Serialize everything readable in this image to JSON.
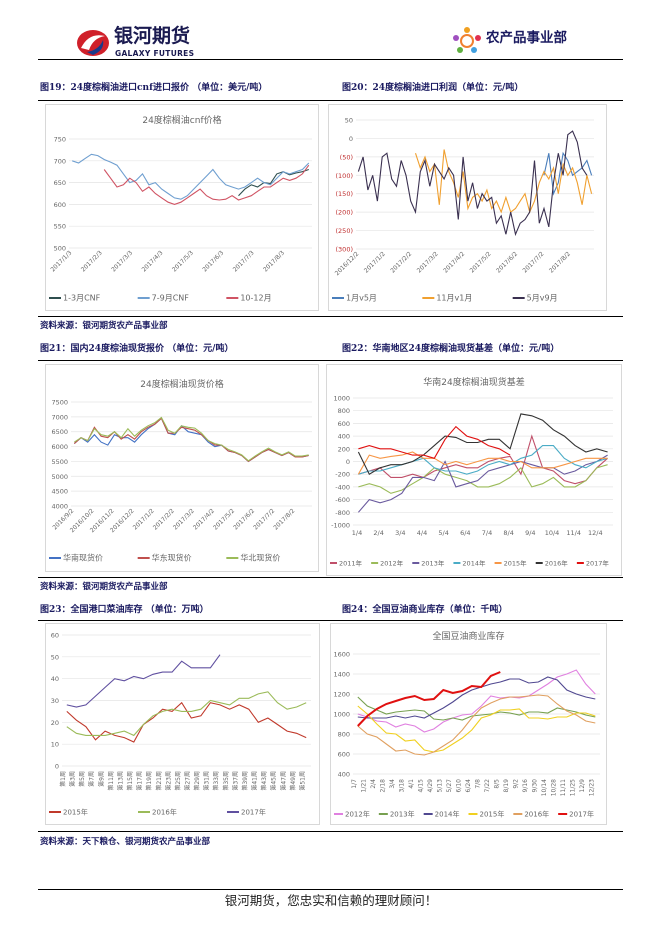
{
  "header": {
    "logo_cn": "银河期货",
    "logo_en": "GALAXY FUTURES",
    "dept": "农产品事业部"
  },
  "captions": {
    "fig19": "图19：24度棕榈油进口cnf进口报价 （单位：美元/吨）",
    "fig20": "图20：24度棕榈油进口利润（单位：元/吨）",
    "fig21": "图21：国内24度棕油现货报价 （单位：元/吨）",
    "fig22": "图22：华南地区24度棕榈油现货基差（单位：元/吨）",
    "fig23": "图23：全国港口菜油库存 （单位：万吨）",
    "fig24": "图24：全国豆油商业库存（单位：千吨）"
  },
  "sources": {
    "s1": "资料来源：银河期货农产品事业部",
    "s2": "资料来源：银河期货农产品事业部",
    "s3": "资料来源：天下粮仓、银河期货农产品事业部"
  },
  "footer": {
    "slogan": "银河期货，您忠实和信赖的理财顾问！"
  },
  "chart_data": [
    {
      "type": "line",
      "title": "24度棕榈油cnf价格",
      "ylim": [
        500,
        750
      ],
      "yticks": [
        500,
        550,
        600,
        650,
        700,
        750
      ],
      "ytick_labels": [
        "500",
        "550",
        "600",
        "650",
        "700",
        "750"
      ],
      "xlabels": [
        "2017/1/3",
        "2017/2/3",
        "2017/3/3",
        "2017/4/3",
        "2017/5/3",
        "2017/6/3",
        "2017/7/3",
        "2017/8/3"
      ],
      "x_count": 38,
      "series": [
        {
          "name": "1-3月CNF",
          "color": "#2f4f4f",
          "offset": 26,
          "values": [
            620,
            635,
            645,
            640,
            650,
            648,
            670,
            675,
            668,
            672,
            675,
            680
          ]
        },
        {
          "name": "7-9月CNF",
          "color": "#6f9fd0",
          "offset": 0,
          "values": [
            700,
            695,
            705,
            715,
            712,
            703,
            697,
            690,
            670,
            650,
            655,
            670,
            645,
            650,
            635,
            625,
            615,
            612,
            620,
            635,
            650,
            665,
            680,
            660,
            645,
            640,
            635,
            640,
            650,
            660,
            650,
            645,
            660,
            675,
            670,
            675,
            680,
            695
          ]
        },
        {
          "name": "10-12月",
          "color": "#d05464",
          "offset": 5,
          "values": [
            680,
            660,
            640,
            645,
            660,
            650,
            630,
            640,
            625,
            615,
            605,
            600,
            605,
            615,
            625,
            635,
            620,
            612,
            610,
            612,
            620,
            610,
            615,
            620,
            630,
            640,
            640,
            650,
            660,
            655,
            660,
            670,
            690
          ]
        }
      ]
    },
    {
      "type": "line",
      "title": "",
      "ylim": [
        -300,
        50
      ],
      "yticks": [
        -300,
        -250,
        -200,
        -150,
        -100,
        -50,
        0,
        50
      ],
      "ytick_labels": [
        "(300)",
        "(250)",
        "(200)",
        "(150)",
        "(100)",
        "(50)",
        "0",
        "50"
      ],
      "xlabels": [
        "2016/12/2",
        "2017/1/2",
        "2017/2/2",
        "2017/3/2",
        "2017/4/2",
        "2017/5/2",
        "2017/6/2",
        "2017/7/2",
        "2017/8/2"
      ],
      "x_count": 50,
      "series": [
        {
          "name": "1月v5月",
          "color": "#4a7ebb",
          "offset": 39,
          "values": [
            -100,
            -40,
            -150,
            -120,
            -40,
            -60,
            -100,
            -90,
            -80,
            -60,
            -100
          ]
        },
        {
          "name": "11月v1月",
          "color": "#f0a030",
          "offset": 12,
          "values": [
            -40,
            -80,
            -50,
            -90,
            -70,
            -180,
            -30,
            -90,
            -120,
            -160,
            -90,
            -190,
            -160,
            -150,
            -170,
            -140,
            -190,
            -170,
            -200,
            -160,
            -200,
            -190,
            -170,
            -150,
            -200,
            -170,
            -120,
            -90,
            -110,
            -80,
            -150,
            -70,
            -100,
            -80,
            -120,
            -180,
            -100,
            -150
          ]
        },
        {
          "name": "5月v9月",
          "color": "#3a3050",
          "offset": 0,
          "values": [
            -90,
            -50,
            -140,
            -100,
            -170,
            -50,
            -40,
            -110,
            -130,
            -60,
            -100,
            -170,
            -200,
            -90,
            -60,
            -130,
            -70,
            -90,
            -110,
            -80,
            -100,
            -220,
            -50,
            -170,
            -120,
            -190,
            -150,
            -170,
            -160,
            -230,
            -210,
            -260,
            -200,
            -260,
            -230,
            -220,
            -200,
            -60,
            -230,
            -190,
            -240,
            -120,
            -40,
            -100,
            10,
            20,
            -10,
            -80,
            -100
          ]
        }
      ]
    },
    {
      "type": "line",
      "title": "24度棕榈油现货价格",
      "ylim": [
        4000,
        7500
      ],
      "yticks": [
        4000,
        4500,
        5000,
        5500,
        6000,
        6500,
        7000,
        7500
      ],
      "ytick_labels": [
        "4000",
        "4500",
        "5000",
        "5500",
        "6000",
        "6500",
        "7000",
        "7500"
      ],
      "xlabels": [
        "2016/9/2",
        "2016/10/2",
        "2016/11/2",
        "2016/12/2",
        "2017/1/2",
        "2017/2/2",
        "2017/3/2",
        "2017/4/2",
        "2017/5/2",
        "2017/6/2",
        "2017/7/2",
        "2017/8/2"
      ],
      "x_count": 36,
      "series": [
        {
          "name": "华南现货价",
          "color": "#4472c4",
          "offset": 0,
          "values": [
            6100,
            6300,
            6150,
            6400,
            6150,
            6050,
            6400,
            6300,
            6300,
            6150,
            6400,
            6600,
            6750,
            6950,
            6450,
            6400,
            6700,
            6500,
            6450,
            6400,
            6150,
            6000,
            6050,
            5850,
            5800,
            5700,
            5500,
            5650,
            5800,
            5900,
            5800,
            5700,
            5800,
            5650,
            5650,
            5700
          ]
        },
        {
          "name": "华东现货价",
          "color": "#c0504d",
          "offset": 0,
          "values": [
            6100,
            6300,
            6200,
            6650,
            6350,
            6300,
            6500,
            6250,
            6400,
            6250,
            6500,
            6650,
            6750,
            6950,
            6450,
            6450,
            6650,
            6600,
            6550,
            6400,
            6200,
            6050,
            6050,
            5850,
            5800,
            5700,
            5500,
            5650,
            5800,
            5900,
            5800,
            5700,
            5800,
            5650,
            5650,
            5700
          ]
        },
        {
          "name": "华北现货价",
          "color": "#9bbb59",
          "offset": 0,
          "values": [
            6150,
            6300,
            6200,
            6600,
            6400,
            6350,
            6500,
            6300,
            6600,
            6350,
            6550,
            6700,
            6800,
            6980,
            6550,
            6450,
            6700,
            6650,
            6620,
            6450,
            6200,
            6100,
            6050,
            5900,
            5820,
            5720,
            5520,
            5680,
            5820,
            5950,
            5820,
            5720,
            5820,
            5680,
            5680,
            5720
          ]
        }
      ]
    },
    {
      "type": "line",
      "title": "华南24度棕榈油现货基差",
      "ylim": [
        -1000,
        1000
      ],
      "yticks": [
        -1000,
        -800,
        -600,
        -400,
        -200,
        0,
        200,
        400,
        600,
        800,
        1000
      ],
      "ytick_labels": [
        "-1000",
        "-800",
        "-600",
        "-400",
        "-200",
        "0",
        "200",
        "400",
        "600",
        "800",
        "1000"
      ],
      "xlabels": [
        "1/4",
        "2/4",
        "3/4",
        "4/4",
        "5/4",
        "6/4",
        "7/4",
        "8/4",
        "9/4",
        "10/4",
        "11/4",
        "12/4"
      ],
      "x_count": 24,
      "series": [
        {
          "name": "2011年",
          "color": "#c0506a",
          "offset": 0,
          "values": [
            -200,
            -150,
            -100,
            -250,
            -250,
            -200,
            -250,
            -150,
            -100,
            -50,
            -100,
            -100,
            0,
            50,
            80,
            -200,
            400,
            -100,
            -150,
            -300,
            -350,
            -300,
            -100,
            50
          ]
        },
        {
          "name": "2012年",
          "color": "#9bbb59",
          "offset": 0,
          "values": [
            -400,
            -350,
            -400,
            -500,
            -450,
            -350,
            -250,
            -100,
            -200,
            -250,
            -300,
            -400,
            -400,
            -350,
            -250,
            -100,
            -400,
            -350,
            -250,
            -400,
            -400,
            -300,
            -100,
            -50
          ]
        },
        {
          "name": "2013年",
          "color": "#6a5a9e",
          "offset": 0,
          "values": [
            -800,
            -600,
            -650,
            -600,
            -500,
            -250,
            -250,
            -300,
            0,
            -400,
            -350,
            -300,
            -150,
            -100,
            -50,
            0,
            -50,
            -100,
            -100,
            -200,
            -150,
            -50,
            0,
            100
          ]
        },
        {
          "name": "2014年",
          "color": "#4bacc6",
          "offset": 0,
          "values": [
            -200,
            -150,
            -150,
            -100,
            -50,
            0,
            50,
            -100,
            -150,
            -150,
            -200,
            -150,
            -50,
            0,
            -50,
            50,
            100,
            250,
            250,
            50,
            -50,
            -100,
            0,
            50
          ]
        },
        {
          "name": "2015年",
          "color": "#f79646",
          "offset": 0,
          "values": [
            -200,
            100,
            50,
            80,
            100,
            150,
            50,
            50,
            -50,
            0,
            -50,
            0,
            50,
            50,
            0,
            0,
            -100,
            -100,
            -100,
            -50,
            0,
            50,
            50,
            50
          ]
        },
        {
          "name": "2016年",
          "color": "#333333",
          "offset": 0,
          "values": [
            150,
            -200,
            -100,
            -50,
            -50,
            0,
            100,
            250,
            400,
            380,
            300,
            300,
            350,
            350,
            200,
            750,
            720,
            650,
            500,
            400,
            250,
            150,
            200,
            150
          ]
        },
        {
          "name": "2017年",
          "color": "#e01010",
          "offset": 0,
          "values": [
            200,
            250,
            200,
            200,
            150,
            100,
            100,
            50,
            350,
            550,
            400,
            350,
            250,
            200,
            100
          ]
        }
      ]
    },
    {
      "type": "line",
      "title": "",
      "ylim": [
        0,
        60
      ],
      "yticks": [
        0,
        10,
        20,
        30,
        40,
        50,
        60
      ],
      "ytick_labels": [
        "0",
        "10",
        "20",
        "30",
        "40",
        "50",
        "60"
      ],
      "xlabels": [
        "第1周",
        "第3周",
        "第5周",
        "第7周",
        "第9周",
        "第11周",
        "第13周",
        "第15周",
        "第17周",
        "第19周",
        "第21周",
        "第23周",
        "第25周",
        "第27周",
        "第29周",
        "第31周",
        "第33周",
        "第35周",
        "第37周",
        "第39周",
        "第41周",
        "第43周",
        "第45周",
        "第47周",
        "第49周",
        "第51周"
      ],
      "x_count": 26,
      "series": [
        {
          "name": "2015年",
          "color": "#c0392b",
          "offset": 0,
          "values": [
            25,
            21,
            18,
            12,
            16,
            14,
            13,
            11,
            19,
            22,
            26,
            25,
            29,
            22,
            23,
            29,
            28,
            26,
            28,
            26,
            20,
            22,
            19,
            16,
            15,
            13
          ]
        },
        {
          "name": "2016年",
          "color": "#9bbb59",
          "offset": 0,
          "values": [
            18,
            15,
            14,
            14,
            14,
            15,
            16,
            14,
            19,
            23,
            25,
            26,
            25,
            25,
            26,
            30,
            29,
            28,
            31,
            31,
            33,
            34,
            29,
            26,
            27,
            29
          ]
        },
        {
          "name": "2017年",
          "color": "#6050a0",
          "offset": 0,
          "values": [
            28,
            27,
            28,
            32,
            36,
            40,
            39,
            41,
            40,
            42,
            43,
            43,
            48,
            45,
            45,
            45,
            51
          ]
        }
      ]
    },
    {
      "type": "line",
      "title": "全国豆油商业库存",
      "ylim": [
        400,
        1600
      ],
      "yticks": [
        400,
        600,
        800,
        1000,
        1200,
        1400,
        1600
      ],
      "ytick_labels": [
        "400",
        "600",
        "800",
        "1000",
        "1200",
        "1400",
        "1600"
      ],
      "xlabels": [
        "1/7",
        "1/21",
        "2/4",
        "2/18",
        "3/4",
        "3/18",
        "4/1",
        "4/15",
        "4/29",
        "5/13",
        "5/27",
        "6/10",
        "6/24",
        "7/8",
        "7/22",
        "8/5",
        "8/19",
        "9/2",
        "9/16",
        "9/30",
        "10/14",
        "10/28",
        "11/11",
        "11/25",
        "12/9",
        "12/23"
      ],
      "x_count": 26,
      "series": [
        {
          "name": "2012年",
          "color": "#e080e0",
          "offset": 0,
          "values": [
            1000,
            970,
            930,
            920,
            870,
            900,
            880,
            820,
            850,
            920,
            960,
            990,
            1000,
            1080,
            1180,
            1160,
            1170,
            1160,
            1180,
            1240,
            1300,
            1370,
            1400,
            1440,
            1300,
            1200
          ]
        },
        {
          "name": "2013年",
          "color": "#77a050",
          "offset": 0,
          "values": [
            1170,
            1080,
            1040,
            1000,
            1020,
            1030,
            1040,
            1030,
            950,
            940,
            960,
            940,
            980,
            990,
            1000,
            1020,
            1010,
            990,
            1020,
            1020,
            1010,
            1060,
            1040,
            1020,
            990,
            970
          ]
        },
        {
          "name": "2014年",
          "color": "#504890",
          "offset": 0,
          "values": [
            970,
            960,
            960,
            960,
            980,
            960,
            980,
            960,
            1010,
            1060,
            1120,
            1190,
            1240,
            1270,
            1300,
            1320,
            1350,
            1350,
            1310,
            1320,
            1370,
            1340,
            1240,
            1200,
            1170,
            1150
          ]
        },
        {
          "name": "2015年",
          "color": "#f0d020",
          "offset": 0,
          "values": [
            1080,
            1000,
            900,
            810,
            800,
            730,
            740,
            640,
            620,
            640,
            700,
            760,
            840,
            960,
            990,
            1040,
            1040,
            1050,
            960,
            960,
            950,
            970,
            970,
            1010,
            1010,
            980
          ]
        },
        {
          "name": "2016年",
          "color": "#e0a060",
          "offset": 0,
          "values": [
            880,
            800,
            770,
            700,
            630,
            640,
            600,
            590,
            620,
            680,
            740,
            840,
            960,
            1060,
            1110,
            1150,
            1170,
            1170,
            1180,
            1190,
            1180,
            1100,
            1030,
            990,
            930,
            910
          ]
        },
        {
          "name": "2017年",
          "color": "#e01010",
          "offset": 0,
          "values": [
            880,
            980,
            1050,
            1100,
            1130,
            1160,
            1180,
            1140,
            1150,
            1240,
            1210,
            1230,
            1280,
            1270,
            1380,
            1420
          ]
        }
      ]
    }
  ]
}
